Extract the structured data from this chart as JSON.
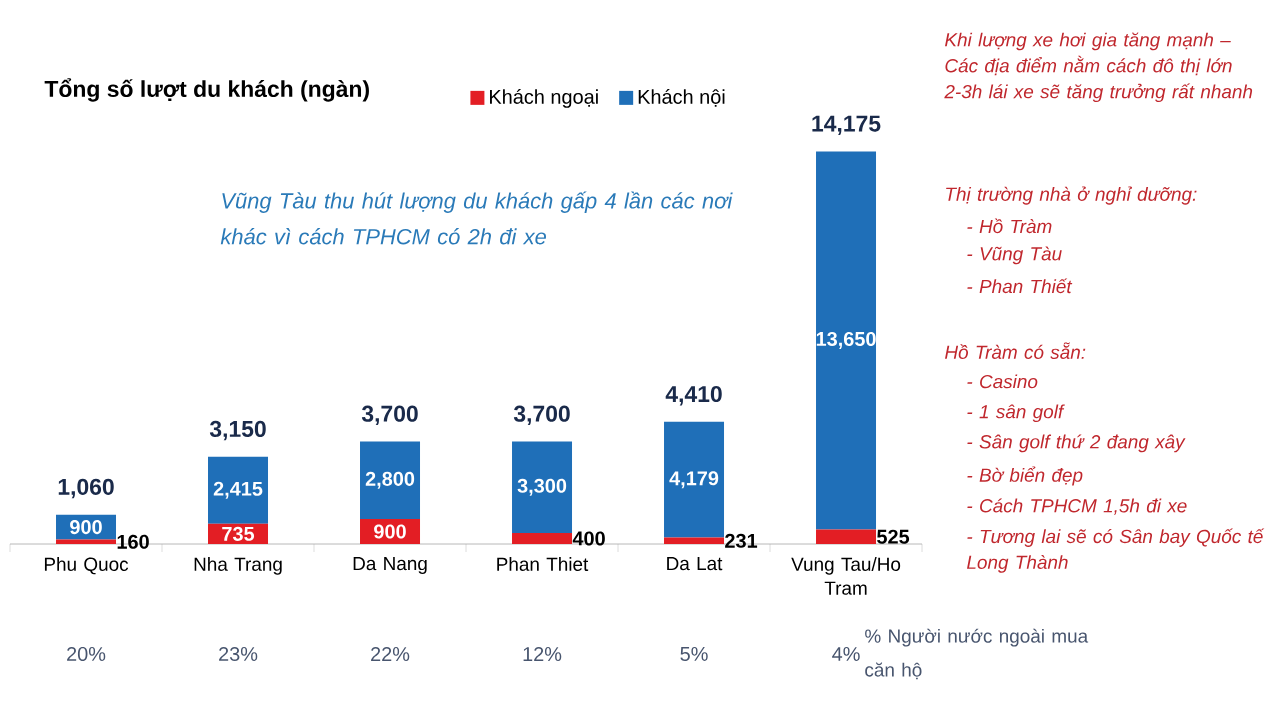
{
  "chart_data": {
    "type": "bar",
    "stacked": true,
    "title": "Tổng số lượt du khách (ngàn)",
    "categories": [
      "Phu Quoc",
      "Nha Trang",
      "Da Nang",
      "Phan Thiet",
      "Da Lat",
      "Vung Tau/Ho Tram"
    ],
    "series": [
      {
        "name": "Khách ngoại",
        "color": "#e31e24",
        "values": [
          160,
          735,
          900,
          400,
          231,
          525
        ],
        "value_labels": [
          "160",
          "735",
          "900",
          "400",
          "231",
          "525"
        ]
      },
      {
        "name": "Khách nội",
        "color": "#1f6fb8",
        "values": [
          900,
          2415,
          2800,
          3300,
          4179,
          13650
        ],
        "value_labels": [
          "900",
          "2,415",
          "2,800",
          "3,300",
          "4,179",
          "13,650"
        ]
      }
    ],
    "totals": [
      "1,060",
      "3,150",
      "3,700",
      "3,700",
      "4,410",
      "14,175"
    ],
    "legend": "top",
    "annotations": [
      "Vũng Tàu thu hút lượng du khách gấp 4 lần các nơi khác vì cách TPHCM có 2h đi xe",
      "20%",
      "23%",
      "22%",
      "12%",
      "5%",
      "4%",
      "% Người nước ngoài mua căn hộ",
      "Khi lượng xe hơi gia tăng mạnh – Các địa điểm nằm cách đô thị lớn 2-3h lái xe sẽ tăng trưởng rất nhanh",
      "Thị trường nhà ở nghỉ dưỡng:",
      "- Hồ Tràm",
      "- Vũng Tàu",
      "- Phan Thiết",
      "Hồ Tràm có sẵn:",
      "- Casino",
      "- 1 sân golf",
      "- Sân golf thứ 2 đang xây",
      "- Bờ biển đẹp",
      "- Cách TPHCM 1,5h đi xe",
      "- Tương lai sẽ có Sân bay Quốc tế Long Thành"
    ]
  }
}
